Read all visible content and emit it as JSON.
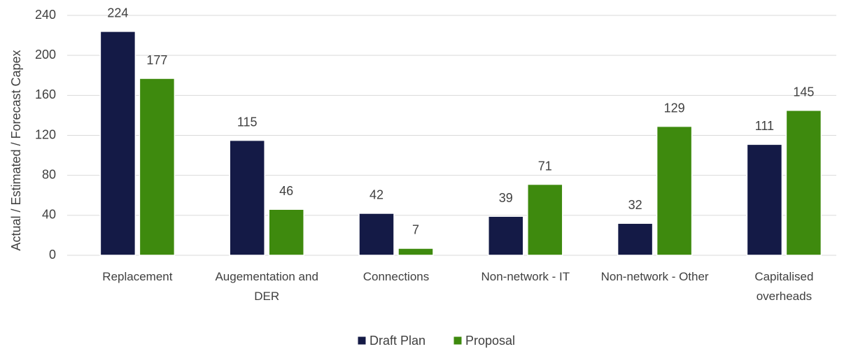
{
  "chart_data": {
    "type": "bar",
    "y_axis_label": "Actual / Estimated / Forecast Capex",
    "categories": [
      "Replacement",
      "Augementation and DER",
      "Connections",
      "Non-network - IT",
      "Non-network - Other",
      "Capitalised overheads"
    ],
    "series": [
      {
        "name": "Draft Plan",
        "color": "#141a46",
        "values": [
          224,
          115,
          42,
          39,
          32,
          111
        ]
      },
      {
        "name": "Proposal",
        "color": "#3e8a0e",
        "values": [
          177,
          46,
          7,
          71,
          129,
          145
        ]
      }
    ],
    "ylim": [
      0,
      240
    ],
    "yticks": [
      0,
      40,
      80,
      120,
      160,
      200,
      240
    ],
    "grid": true,
    "legend": "bottom"
  }
}
